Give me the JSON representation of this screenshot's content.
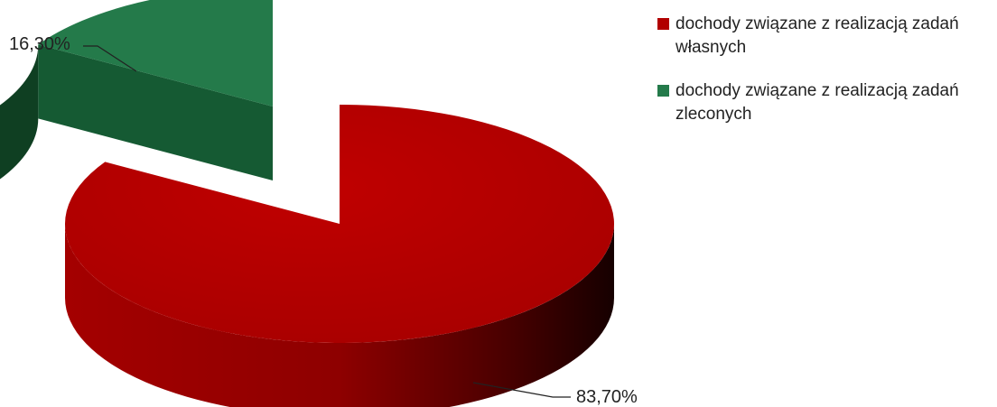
{
  "chart_data": {
    "type": "pie",
    "style": "3d-exploded",
    "title": "",
    "series": [
      {
        "name": "dochody związane z realizacją zadań własnych",
        "legend_line1": "dochody związane z realizacją zadań",
        "legend_line2": "własnych",
        "value": 83.7,
        "label": "83,70%",
        "color": "#b10000",
        "dark_color": "#2a0000"
      },
      {
        "name": "dochody związane z realizacją zadań zleconych",
        "legend_line1": "dochody związane z realizacją zadań",
        "legend_line2": "zleconych",
        "value": 16.3,
        "label": "16,30%",
        "color": "#247a4a",
        "dark_color": "#0f3f22"
      }
    ],
    "legend_position": "top-right"
  }
}
